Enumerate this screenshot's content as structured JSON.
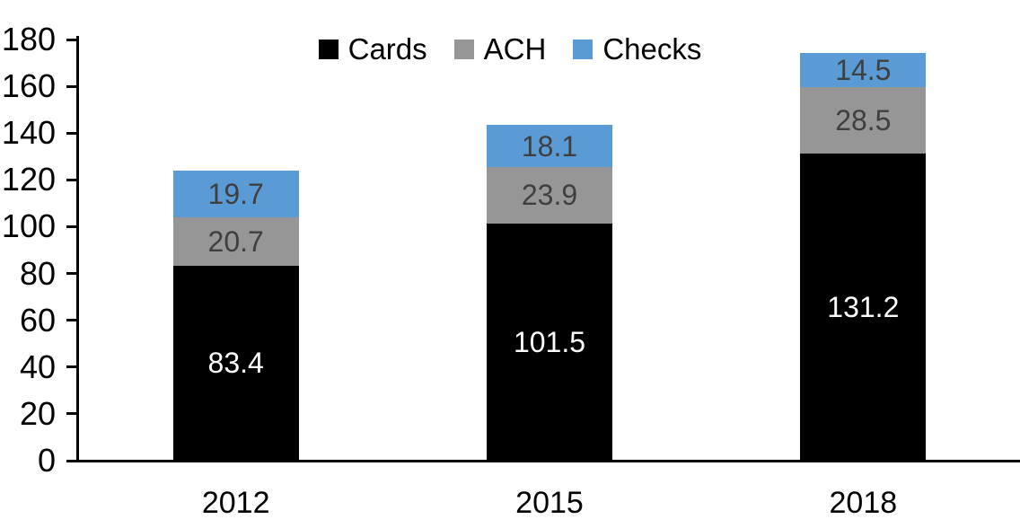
{
  "chart_data": {
    "type": "bar",
    "stacked": true,
    "title": "",
    "categories": [
      "2012",
      "2015",
      "2018"
    ],
    "series": [
      {
        "name": "Cards",
        "color": "#000000",
        "label_color": "#ffffff",
        "values": [
          83.4,
          101.5,
          131.2
        ]
      },
      {
        "name": "ACH",
        "color": "#969696",
        "label_color": "#3f3f3f",
        "values": [
          20.7,
          23.9,
          28.5
        ]
      },
      {
        "name": "Checks",
        "color": "#5b9bd5",
        "label_color": "#3f3f3f",
        "values": [
          19.7,
          18.1,
          14.5
        ]
      }
    ],
    "totals": [
      123.8,
      143.5,
      174.2
    ],
    "ylim": [
      0,
      180
    ],
    "ytick_step": 20,
    "ytick_labels": [
      "0",
      "20",
      "40",
      "60",
      "80",
      "100",
      "120",
      "140",
      "160",
      "180"
    ],
    "value_label_decimals": 1,
    "legend_position": "top-center",
    "legend_order": [
      "Cards",
      "ACH",
      "Checks"
    ],
    "grid": false,
    "axis_color": "#000000",
    "background_color": "#ffffff"
  }
}
